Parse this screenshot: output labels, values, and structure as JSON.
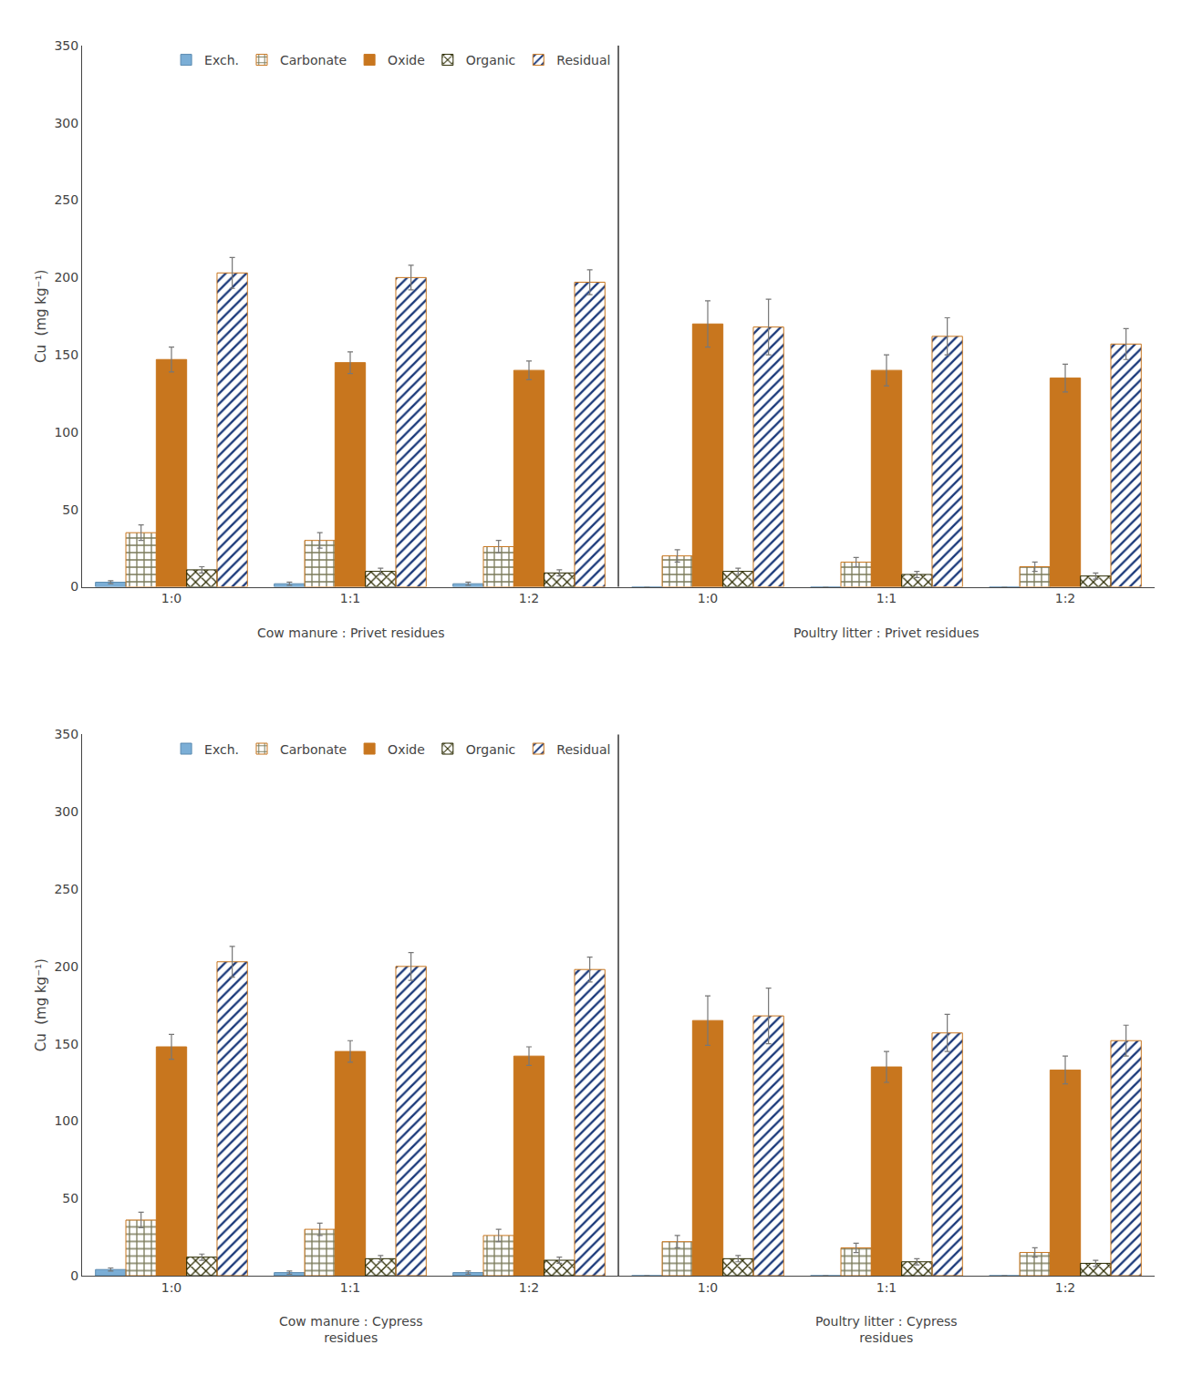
{
  "chart_data": [
    {
      "type": "bar",
      "categories": [
        "1:0",
        "1:1",
        "1:2",
        "1:0",
        "1:1",
        "1:2"
      ],
      "series": [
        {
          "name": "Exch.",
          "color": "#7baed6",
          "values": [
            3,
            2,
            2,
            0,
            0,
            0
          ],
          "errors": [
            1,
            1,
            1,
            0,
            0,
            0
          ]
        },
        {
          "name": "Carbonate",
          "color": "#f5e6c8",
          "values": [
            35,
            30,
            26,
            20,
            16,
            13
          ],
          "errors": [
            5,
            5,
            4,
            4,
            3,
            3
          ]
        },
        {
          "name": "Oxide",
          "color": "#c8761e",
          "values": [
            147,
            145,
            140,
            170,
            140,
            135
          ],
          "errors": [
            8,
            7,
            6,
            15,
            10,
            9
          ]
        },
        {
          "name": "Organic",
          "color": "#5a5a14",
          "values": [
            11,
            10,
            9,
            10,
            8,
            7
          ],
          "errors": [
            2,
            2,
            2,
            2,
            2,
            2
          ]
        },
        {
          "name": "Residual",
          "color": "#e8e8f0",
          "values": [
            203,
            200,
            197,
            168,
            162,
            157
          ],
          "errors": [
            10,
            8,
            8,
            18,
            12,
            10
          ]
        }
      ],
      "ylabel": "Cu  (mg kg⁻¹)",
      "ylim": [
        0,
        350
      ],
      "yticks": [
        0,
        50,
        100,
        150,
        200,
        250,
        300,
        350
      ],
      "grid": false,
      "legend": "upper left",
      "annotations": [
        {
          "text": "Cow manure : Privet residues",
          "x": 1
        },
        {
          "text": "Poultry litter : Privet residues",
          "x": 4
        }
      ]
    },
    {
      "type": "bar",
      "categories": [
        "1:0",
        "1:1",
        "1:2",
        "1:0",
        "1:1",
        "1:2"
      ],
      "series": [
        {
          "name": "Exch.",
          "color": "#7baed6",
          "values": [
            4,
            2,
            2,
            0,
            0,
            0
          ],
          "errors": [
            1,
            1,
            1,
            0,
            0,
            0
          ]
        },
        {
          "name": "Carbonate",
          "color": "#f5e6c8",
          "values": [
            36,
            30,
            26,
            22,
            18,
            15
          ],
          "errors": [
            5,
            4,
            4,
            4,
            3,
            3
          ]
        },
        {
          "name": "Oxide",
          "color": "#c8761e",
          "values": [
            148,
            145,
            142,
            165,
            135,
            133
          ],
          "errors": [
            8,
            7,
            6,
            16,
            10,
            9
          ]
        },
        {
          "name": "Organic",
          "color": "#5a5a14",
          "values": [
            12,
            11,
            10,
            11,
            9,
            8
          ],
          "errors": [
            2,
            2,
            2,
            2,
            2,
            2
          ]
        },
        {
          "name": "Residual",
          "color": "#e8e8f0",
          "values": [
            203,
            200,
            198,
            168,
            157,
            152
          ],
          "errors": [
            10,
            9,
            8,
            18,
            12,
            10
          ]
        }
      ],
      "ylabel": "Cu  (mg kg⁻¹)",
      "ylim": [
        0,
        350
      ],
      "yticks": [
        0,
        50,
        100,
        150,
        200,
        250,
        300,
        350
      ],
      "grid": false,
      "legend": "upper left",
      "annotations": [
        {
          "text": "Cow manure : Cypress\nresidues",
          "x": 1
        },
        {
          "text": "Poultry litter : Cypress\nresidues",
          "x": 4
        }
      ]
    }
  ]
}
